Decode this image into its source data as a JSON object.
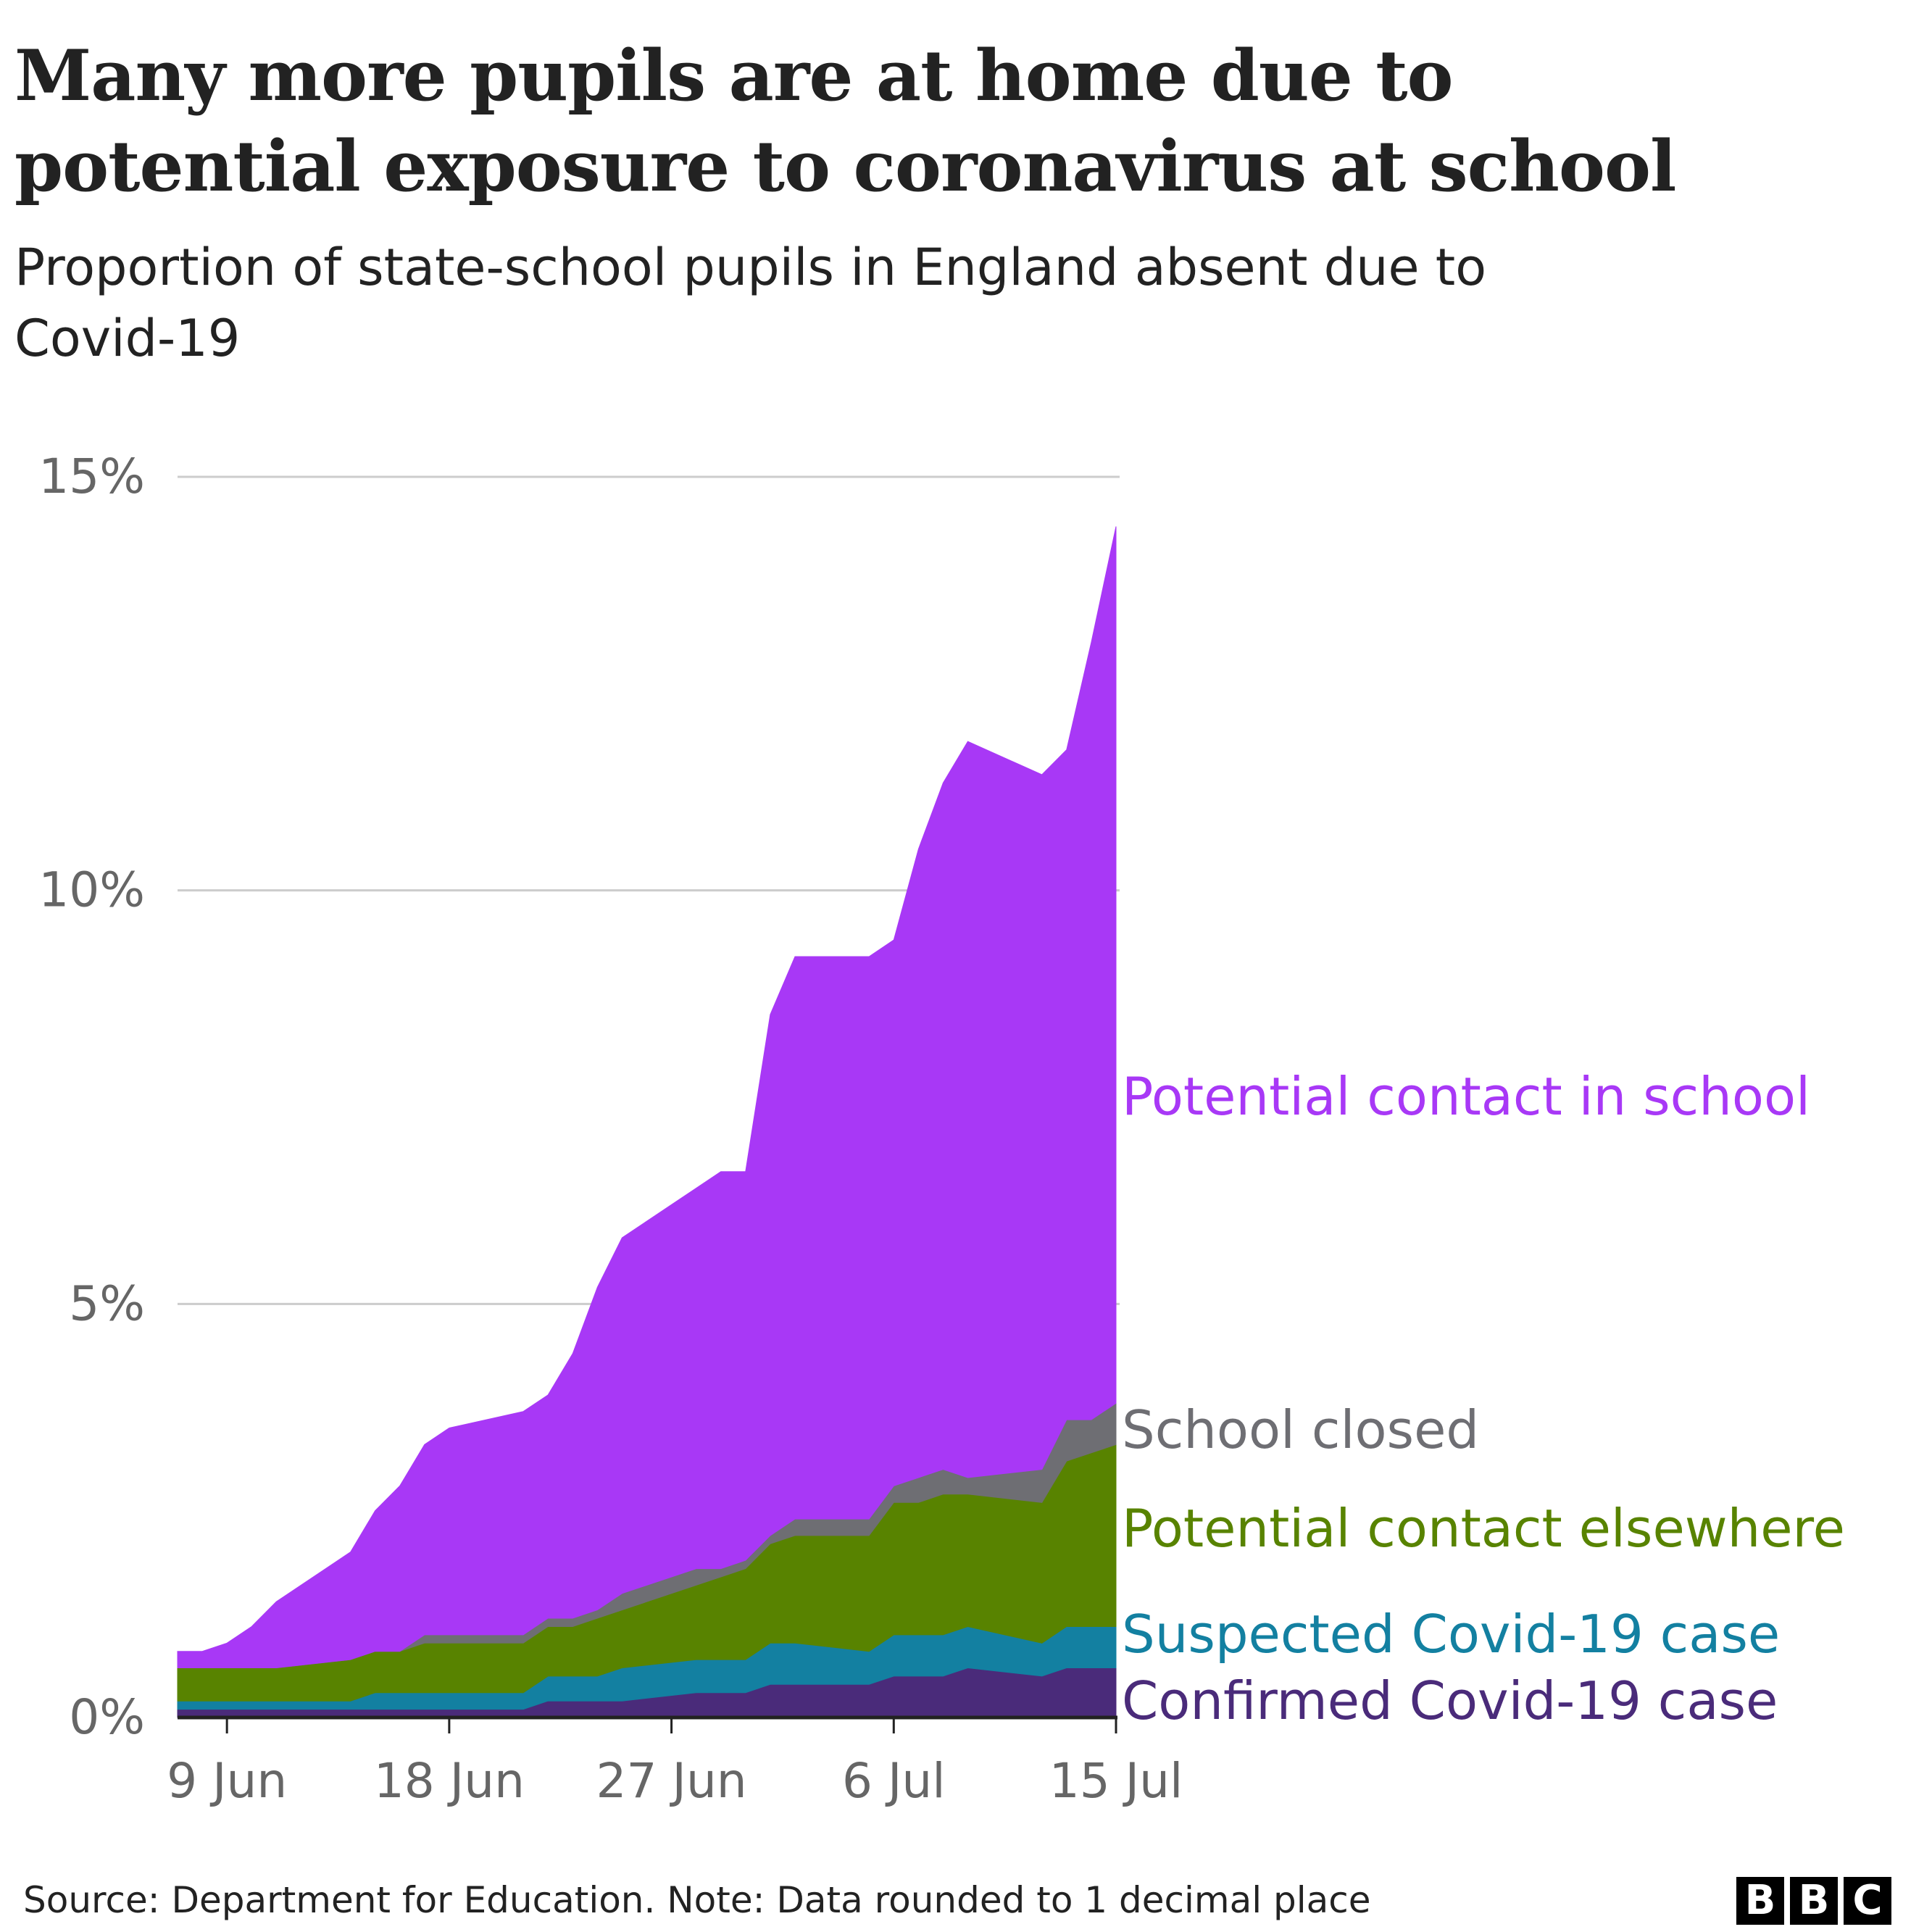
{
  "header": {
    "title_line_1": "Many more pupils are at home due to",
    "title_line_2": "potential exposure to coronavirus at school",
    "subtitle_line_1": "Proportion of state-school pupils in England absent due to",
    "subtitle_line_2": "Covid-19"
  },
  "footer": {
    "source": "Source: Department for Education. Note: Data rounded to 1 decimal place",
    "logo_letters": [
      "B",
      "B",
      "C"
    ]
  },
  "chart_data": {
    "type": "area",
    "stacked": true,
    "title": "Many more pupils are at home due to potential exposure to coronavirus at school",
    "subtitle": "Proportion of state-school pupils in England absent due to Covid-19",
    "xlabel": "",
    "ylabel": "",
    "ylim": [
      0,
      15
    ],
    "yticks": [
      0,
      5,
      10,
      15
    ],
    "ytick_labels": [
      "0%",
      "5%",
      "10%",
      "15%"
    ],
    "xticks": [
      "2021-06-09",
      "2021-06-18",
      "2021-06-27",
      "2021-07-06",
      "2021-07-15"
    ],
    "xtick_labels": [
      "9 Jun",
      "18 Jun",
      "27 Jun",
      "6 Jul",
      "15 Jul"
    ],
    "grid": true,
    "legend": "direct labels at right end of series",
    "x": [
      "2021-06-07",
      "2021-06-08",
      "2021-06-09",
      "2021-06-10",
      "2021-06-11",
      "2021-06-14",
      "2021-06-15",
      "2021-06-16",
      "2021-06-17",
      "2021-06-18",
      "2021-06-21",
      "2021-06-22",
      "2021-06-23",
      "2021-06-24",
      "2021-06-25",
      "2021-06-28",
      "2021-06-29",
      "2021-06-30",
      "2021-07-01",
      "2021-07-02",
      "2021-07-05",
      "2021-07-06",
      "2021-07-07",
      "2021-07-08",
      "2021-07-09",
      "2021-07-12",
      "2021-07-13",
      "2021-07-14",
      "2021-07-15"
    ],
    "series": [
      {
        "name": "Confirmed Covid-19 case",
        "color": "#4a2b7a",
        "values": [
          0.1,
          0.1,
          0.1,
          0.1,
          0.1,
          0.1,
          0.1,
          0.1,
          0.1,
          0.1,
          0.1,
          0.2,
          0.2,
          0.2,
          0.2,
          0.3,
          0.3,
          0.3,
          0.4,
          0.4,
          0.4,
          0.5,
          0.5,
          0.5,
          0.6,
          0.5,
          0.6,
          0.6,
          0.6
        ]
      },
      {
        "name": "Suspected Covid-19 case",
        "color": "#1380a1",
        "values": [
          0.1,
          0.1,
          0.1,
          0.1,
          0.1,
          0.1,
          0.2,
          0.2,
          0.2,
          0.2,
          0.2,
          0.3,
          0.3,
          0.3,
          0.4,
          0.4,
          0.4,
          0.4,
          0.5,
          0.5,
          0.4,
          0.5,
          0.5,
          0.5,
          0.5,
          0.4,
          0.5,
          0.5,
          0.5
        ]
      },
      {
        "name": "Potential contact elsewhere",
        "color": "#588300",
        "values": [
          0.4,
          0.4,
          0.4,
          0.4,
          0.4,
          0.5,
          0.5,
          0.5,
          0.6,
          0.6,
          0.6,
          0.6,
          0.6,
          0.7,
          0.7,
          0.9,
          1.0,
          1.1,
          1.2,
          1.3,
          1.4,
          1.6,
          1.6,
          1.7,
          1.6,
          1.7,
          2.0,
          2.1,
          2.2
        ]
      },
      {
        "name": "School closed",
        "color": "#6e6e73",
        "values": [
          0.0,
          0.0,
          0.0,
          0.0,
          0.0,
          0.0,
          0.0,
          0.0,
          0.1,
          0.1,
          0.1,
          0.1,
          0.1,
          0.1,
          0.2,
          0.2,
          0.1,
          0.1,
          0.1,
          0.2,
          0.2,
          0.2,
          0.3,
          0.3,
          0.2,
          0.4,
          0.5,
          0.4,
          0.5
        ]
      },
      {
        "name": "Potential contact in school",
        "color": "#a838f6",
        "values": [
          0.2,
          0.2,
          0.3,
          0.5,
          0.8,
          1.3,
          1.7,
          2.0,
          2.3,
          2.5,
          2.7,
          2.7,
          3.2,
          3.9,
          4.3,
          4.6,
          4.8,
          4.7,
          6.3,
          6.8,
          6.8,
          6.6,
          7.6,
          8.3,
          8.9,
          8.4,
          8.1,
          9.4,
          10.6
        ]
      }
    ]
  }
}
